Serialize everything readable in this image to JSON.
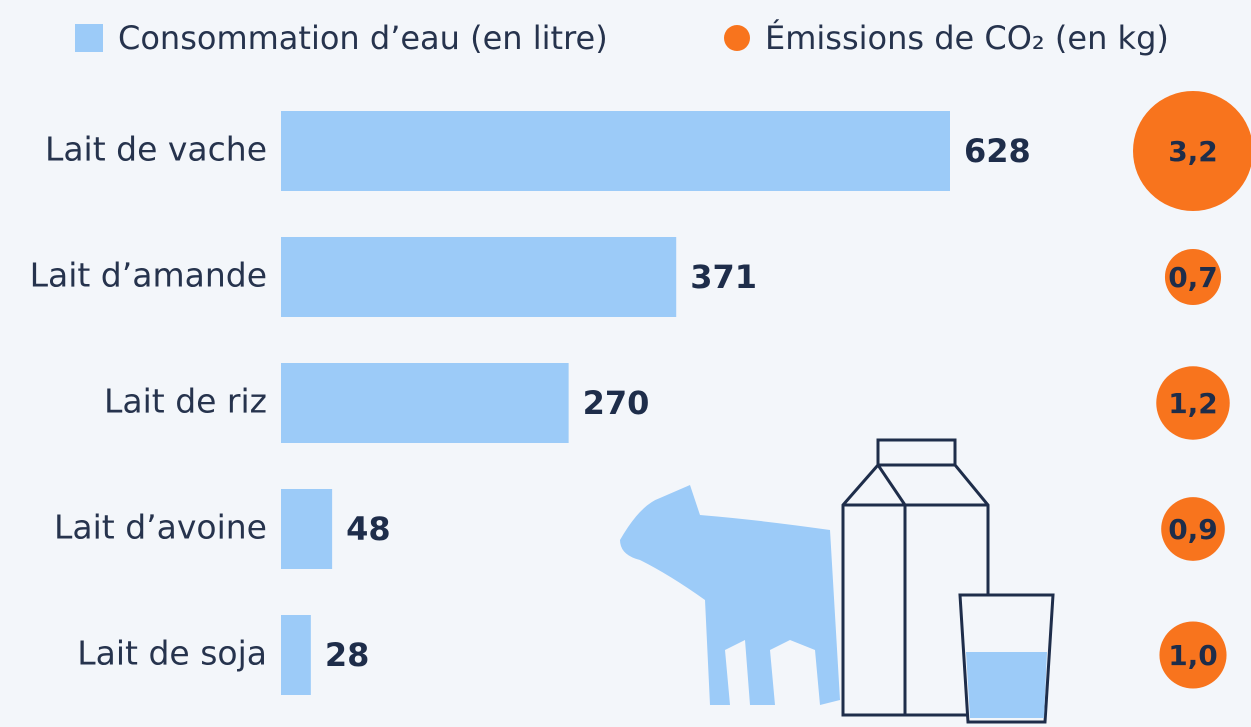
{
  "chart_data": {
    "type": "bar",
    "orientation": "horizontal",
    "categories": [
      "Lait de vache",
      "Lait d’amande",
      "Lait de riz",
      "Lait d’avoine",
      "Lait de soja"
    ],
    "series": [
      {
        "name": "Consommation d’eau (en litre)",
        "color": "#9ccbf8",
        "values": [
          628,
          371,
          270,
          48,
          28
        ]
      },
      {
        "name": "Émissions de CO₂ (en kg)",
        "color": "#f8741d",
        "values": [
          3.2,
          0.7,
          1.2,
          0.9,
          1.0
        ],
        "value_labels": [
          "3,2",
          "0,7",
          "1,2",
          "0,9",
          "1,0"
        ]
      }
    ]
  }
}
